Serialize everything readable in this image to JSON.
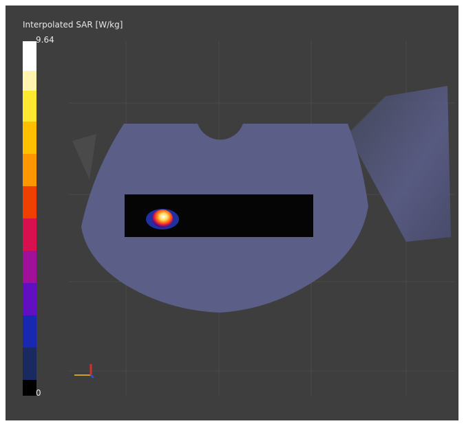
{
  "colorbar": {
    "title": "Interpolated SAR [W/kg]",
    "max": 9.64,
    "min": 0
  }
}
